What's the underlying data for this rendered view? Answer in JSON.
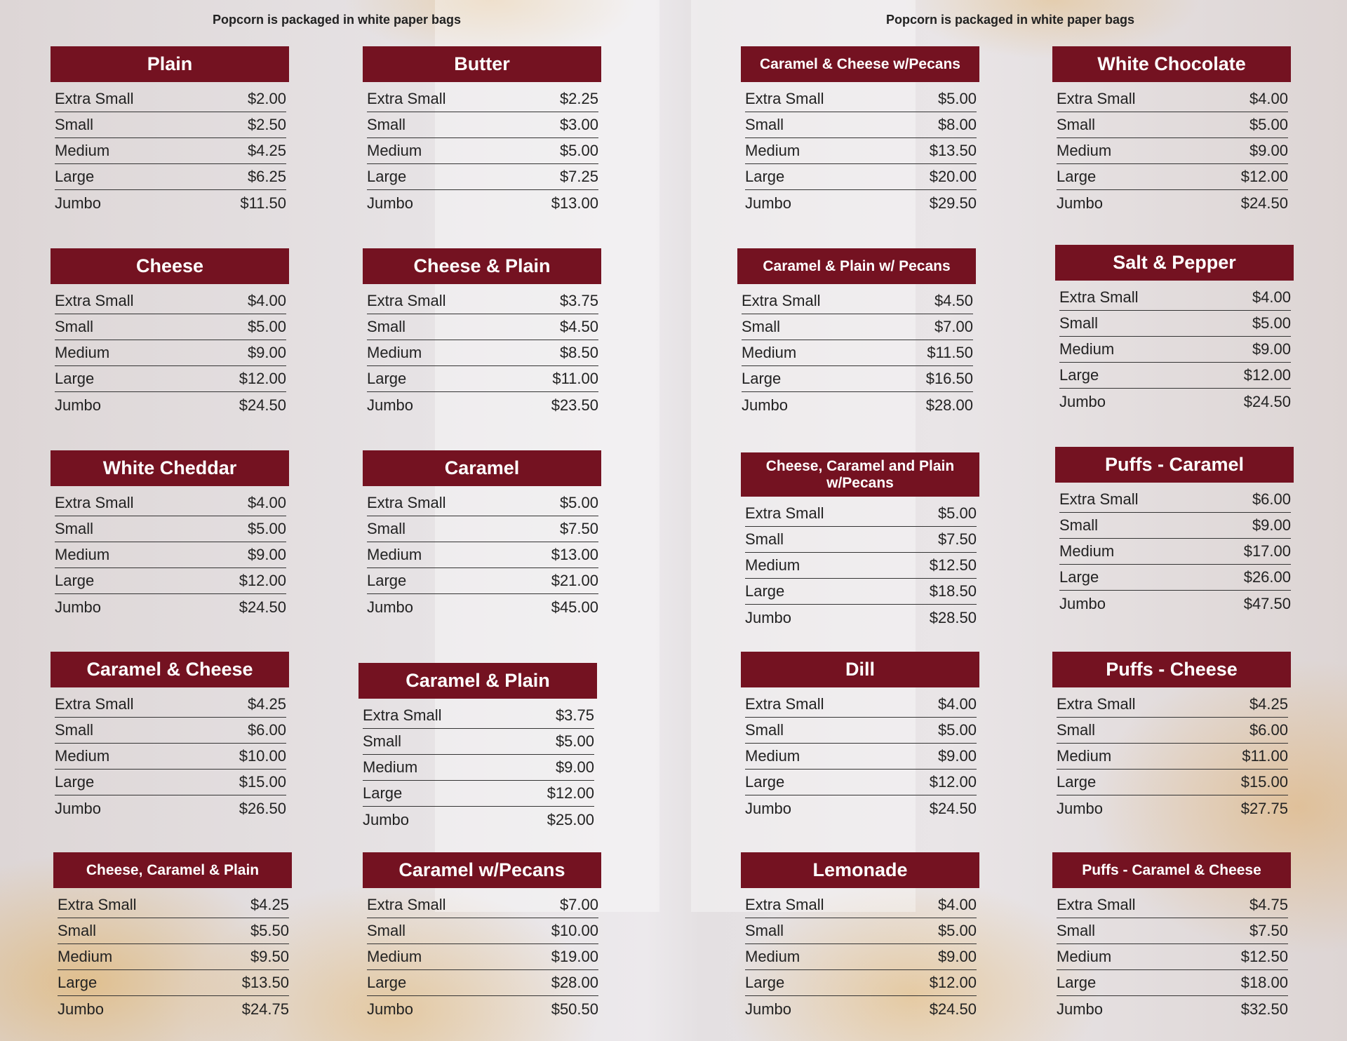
{
  "taglines": [
    "Popcorn is packaged in white paper bags",
    "Popcorn is packaged in white paper bags"
  ],
  "sizes": [
    "Extra Small",
    "Small",
    "Medium",
    "Large",
    "Jumbo"
  ],
  "menu": [
    {
      "name": "Plain",
      "prices": [
        "$2.00",
        "$2.50",
        "$4.25",
        "$6.25",
        "$11.50"
      ]
    },
    {
      "name": "Butter",
      "prices": [
        "$2.25",
        "$3.00",
        "$5.00",
        "$7.25",
        "$13.00"
      ]
    },
    {
      "name": "Caramel & Cheese w/Pecans",
      "prices": [
        "$5.00",
        "$8.00",
        "$13.50",
        "$20.00",
        "$29.50"
      ]
    },
    {
      "name": "White Chocolate",
      "prices": [
        "$4.00",
        "$5.00",
        "$9.00",
        "$12.00",
        "$24.50"
      ]
    },
    {
      "name": "Cheese",
      "prices": [
        "$4.00",
        "$5.00",
        "$9.00",
        "$12.00",
        "$24.50"
      ]
    },
    {
      "name": "Cheese & Plain",
      "prices": [
        "$3.75",
        "$4.50",
        "$8.50",
        "$11.00",
        "$23.50"
      ]
    },
    {
      "name": "Caramel & Plain w/ Pecans",
      "prices": [
        "$4.50",
        "$7.00",
        "$11.50",
        "$16.50",
        "$28.00"
      ]
    },
    {
      "name": "Salt & Pepper",
      "prices": [
        "$4.00",
        "$5.00",
        "$9.00",
        "$12.00",
        "$24.50"
      ]
    },
    {
      "name": "White Cheddar",
      "prices": [
        "$4.00",
        "$5.00",
        "$9.00",
        "$12.00",
        "$24.50"
      ]
    },
    {
      "name": "Caramel",
      "prices": [
        "$5.00",
        "$7.50",
        "$13.00",
        "$21.00",
        "$45.00"
      ]
    },
    {
      "name": "Cheese, Caramel and Plain w/Pecans",
      "prices": [
        "$5.00",
        "$7.50",
        "$12.50",
        "$18.50",
        "$28.50"
      ]
    },
    {
      "name": "Puffs - Caramel",
      "prices": [
        "$6.00",
        "$9.00",
        "$17.00",
        "$26.00",
        "$47.50"
      ]
    },
    {
      "name": "Caramel & Cheese",
      "prices": [
        "$4.25",
        "$6.00",
        "$10.00",
        "$15.00",
        "$26.50"
      ]
    },
    {
      "name": "Caramel & Plain",
      "prices": [
        "$3.75",
        "$5.00",
        "$9.00",
        "$12.00",
        "$25.00"
      ]
    },
    {
      "name": "Dill",
      "prices": [
        "$4.00",
        "$5.00",
        "$9.00",
        "$12.00",
        "$24.50"
      ]
    },
    {
      "name": "Puffs - Cheese",
      "prices": [
        "$4.25",
        "$6.00",
        "$11.00",
        "$15.00",
        "$27.75"
      ]
    },
    {
      "name": "Cheese, Caramel & Plain",
      "prices": [
        "$4.25",
        "$5.50",
        "$9.50",
        "$13.50",
        "$24.75"
      ]
    },
    {
      "name": "Caramel w/Pecans",
      "prices": [
        "$7.00",
        "$10.00",
        "$19.00",
        "$28.00",
        "$50.50"
      ]
    },
    {
      "name": "Lemonade",
      "prices": [
        "$4.00",
        "$5.00",
        "$9.00",
        "$12.00",
        "$24.50"
      ]
    },
    {
      "name": "Puffs - Caramel & Cheese",
      "prices": [
        "$4.75",
        "$7.50",
        "$12.50",
        "$18.00",
        "$32.50"
      ]
    }
  ]
}
